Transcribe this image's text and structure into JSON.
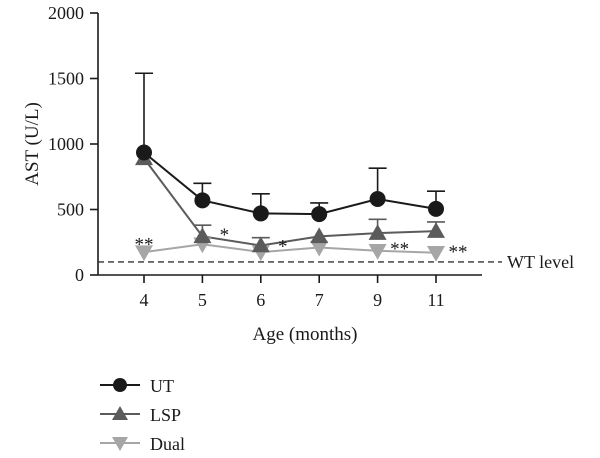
{
  "chart_data": {
    "type": "line",
    "xlabel": "Age (months)",
    "ylabel": "AST (U/L)",
    "categories": [
      "4",
      "5",
      "6",
      "7",
      "9",
      "11"
    ],
    "yticks": [
      0,
      500,
      1000,
      1500,
      2000
    ],
    "ylim": [
      0,
      2000
    ],
    "reference_line": {
      "value": 100,
      "label": "WT level",
      "style": "dashed"
    },
    "legend_position": "bottom-left",
    "series": [
      {
        "name": "UT",
        "marker": "circle",
        "color": "#1a1a1a",
        "values": [
          935,
          570,
          470,
          465,
          580,
          505
        ],
        "error_upper": [
          1540,
          700,
          620,
          550,
          815,
          640
        ]
      },
      {
        "name": "LSP",
        "marker": "triangle-up",
        "color": "#5b5b5b",
        "values": [
          890,
          295,
          225,
          295,
          320,
          335
        ],
        "error_upper": [
          null,
          380,
          285,
          null,
          425,
          405
        ]
      },
      {
        "name": "Dual",
        "marker": "triangle-down",
        "color": "#a6a6a6",
        "values": [
          175,
          235,
          175,
          210,
          185,
          170
        ],
        "error_upper": [
          null,
          null,
          null,
          null,
          null,
          null
        ]
      }
    ],
    "annotations": [
      {
        "category": "4",
        "value": 265,
        "text": "**"
      },
      {
        "category": "5",
        "value": 335,
        "text": "*"
      },
      {
        "category": "6",
        "value": 250,
        "text": "*"
      },
      {
        "category": "9",
        "value": 230,
        "text": "**"
      },
      {
        "category": "11",
        "value": 205,
        "text": "**"
      }
    ]
  }
}
